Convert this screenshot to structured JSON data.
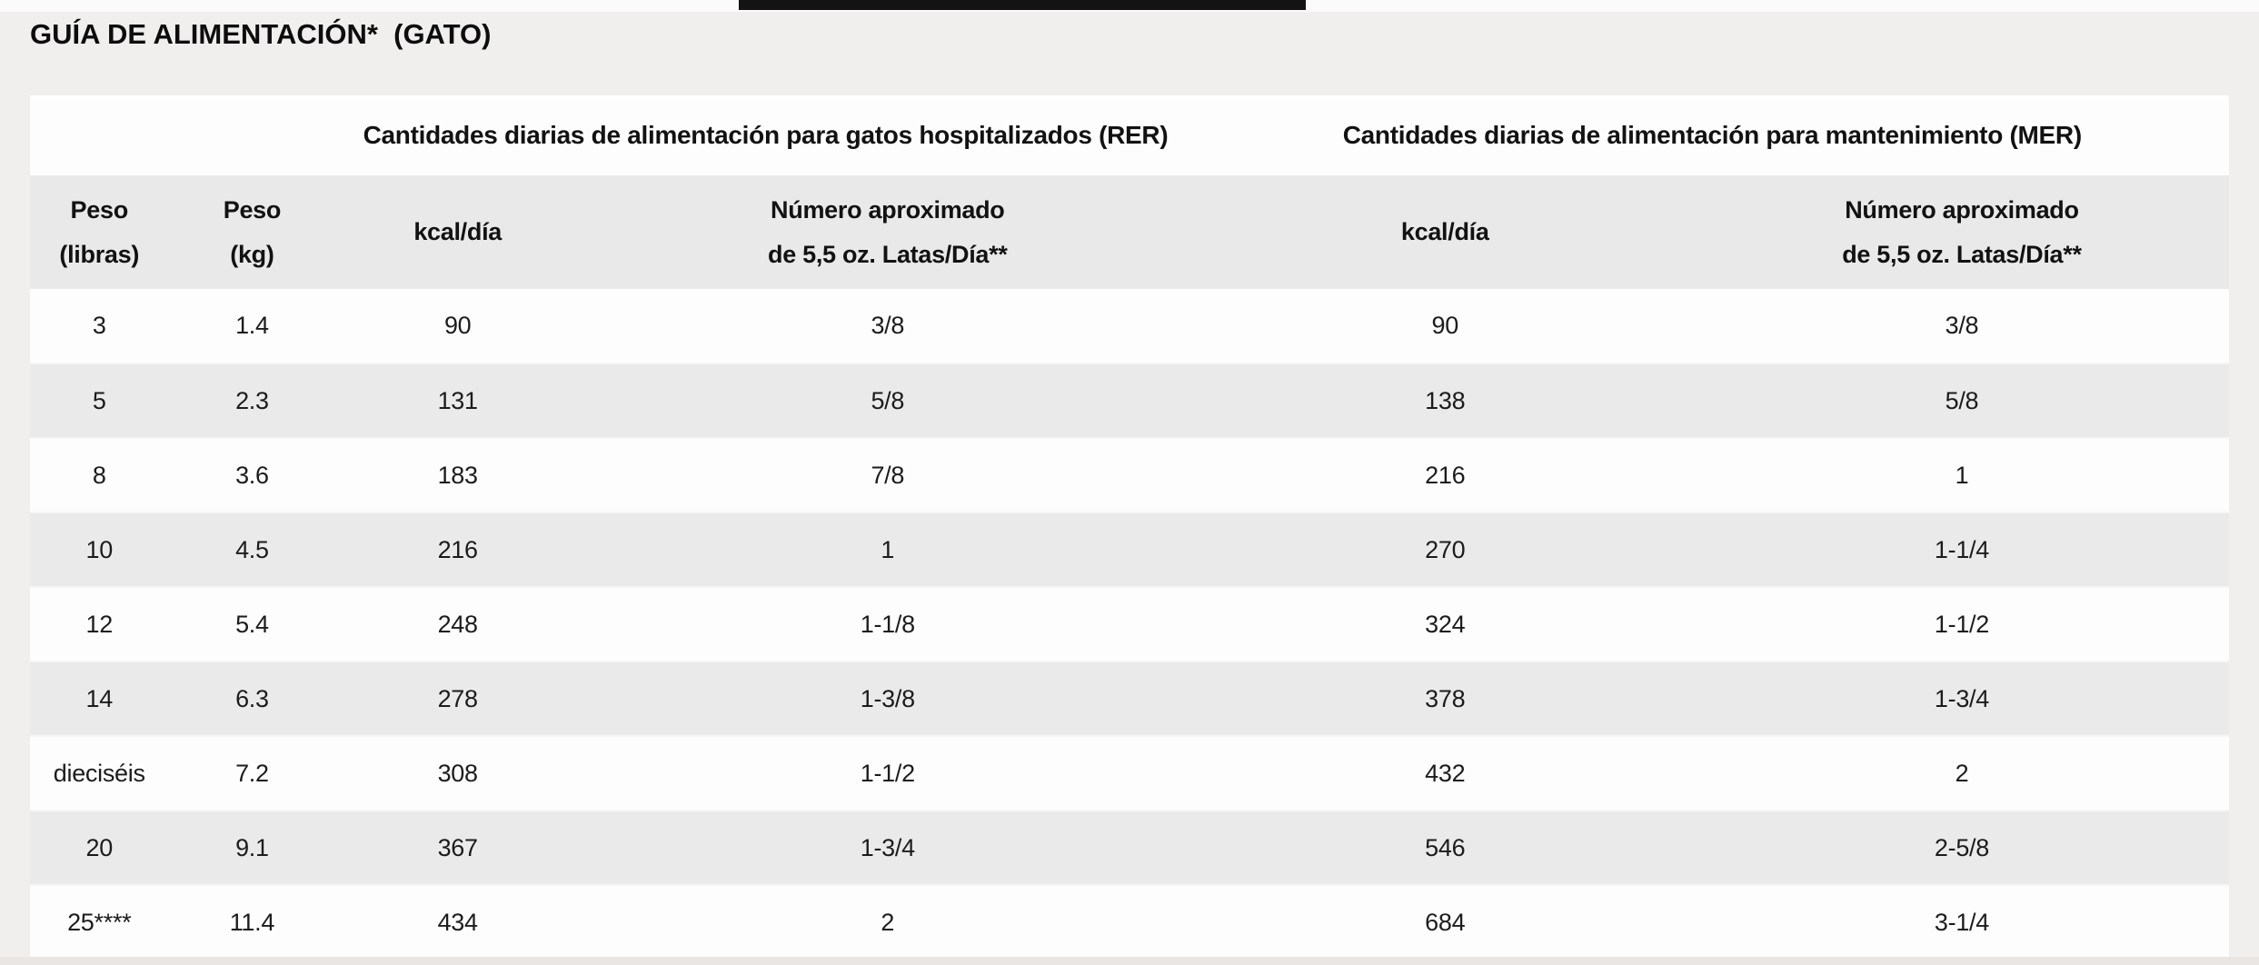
{
  "page": {
    "title": "GUÍA DE ALIMENTACIÓN*  (GATO)"
  },
  "table": {
    "group_headers": [
      "Cantidades diarias de alimentación para gatos hospitalizados (RER)",
      "Cantidades diarias de alimentación para mantenimiento (MER)"
    ],
    "column_headers": [
      {
        "line1": "Peso",
        "line2": "(libras)"
      },
      {
        "line1": "Peso",
        "line2": "(kg)"
      },
      {
        "line1": "kcal/día",
        "line2": ""
      },
      {
        "line1": "Número aproximado",
        "line2": "de 5,5 oz. Latas/Día**"
      },
      {
        "line1": "kcal/día",
        "line2": ""
      },
      {
        "line1": "Número aproximado",
        "line2": "de 5,5 oz. Latas/Día**"
      }
    ],
    "rows": [
      [
        "3",
        "1.4",
        "90",
        "3/8",
        "90",
        "3/8"
      ],
      [
        "5",
        "2.3",
        "131",
        "5/8",
        "138",
        "5/8"
      ],
      [
        "8",
        "3.6",
        "183",
        "7/8",
        "216",
        "1"
      ],
      [
        "10",
        "4.5",
        "216",
        "1",
        "270",
        "1-1/4"
      ],
      [
        "12",
        "5.4",
        "248",
        "1-1/8",
        "324",
        "1-1/2"
      ],
      [
        "14",
        "6.3",
        "278",
        "1-3/8",
        "378",
        "1-3/4"
      ],
      [
        "dieciséis",
        "7.2",
        "308",
        "1-1/2",
        "432",
        "2"
      ],
      [
        "20",
        "9.1",
        "367",
        "1-3/4",
        "546",
        "2-5/8"
      ],
      [
        "25****",
        "11.4",
        "434",
        "2",
        "684",
        "3-1/4"
      ]
    ]
  },
  "colors": {
    "page_background": "#f1efee",
    "row_white": "#fdfdfd",
    "row_gray": "#ebeaea",
    "column_header_background": "#eae9e9",
    "text": "#121212",
    "top_bar": "#131313"
  }
}
